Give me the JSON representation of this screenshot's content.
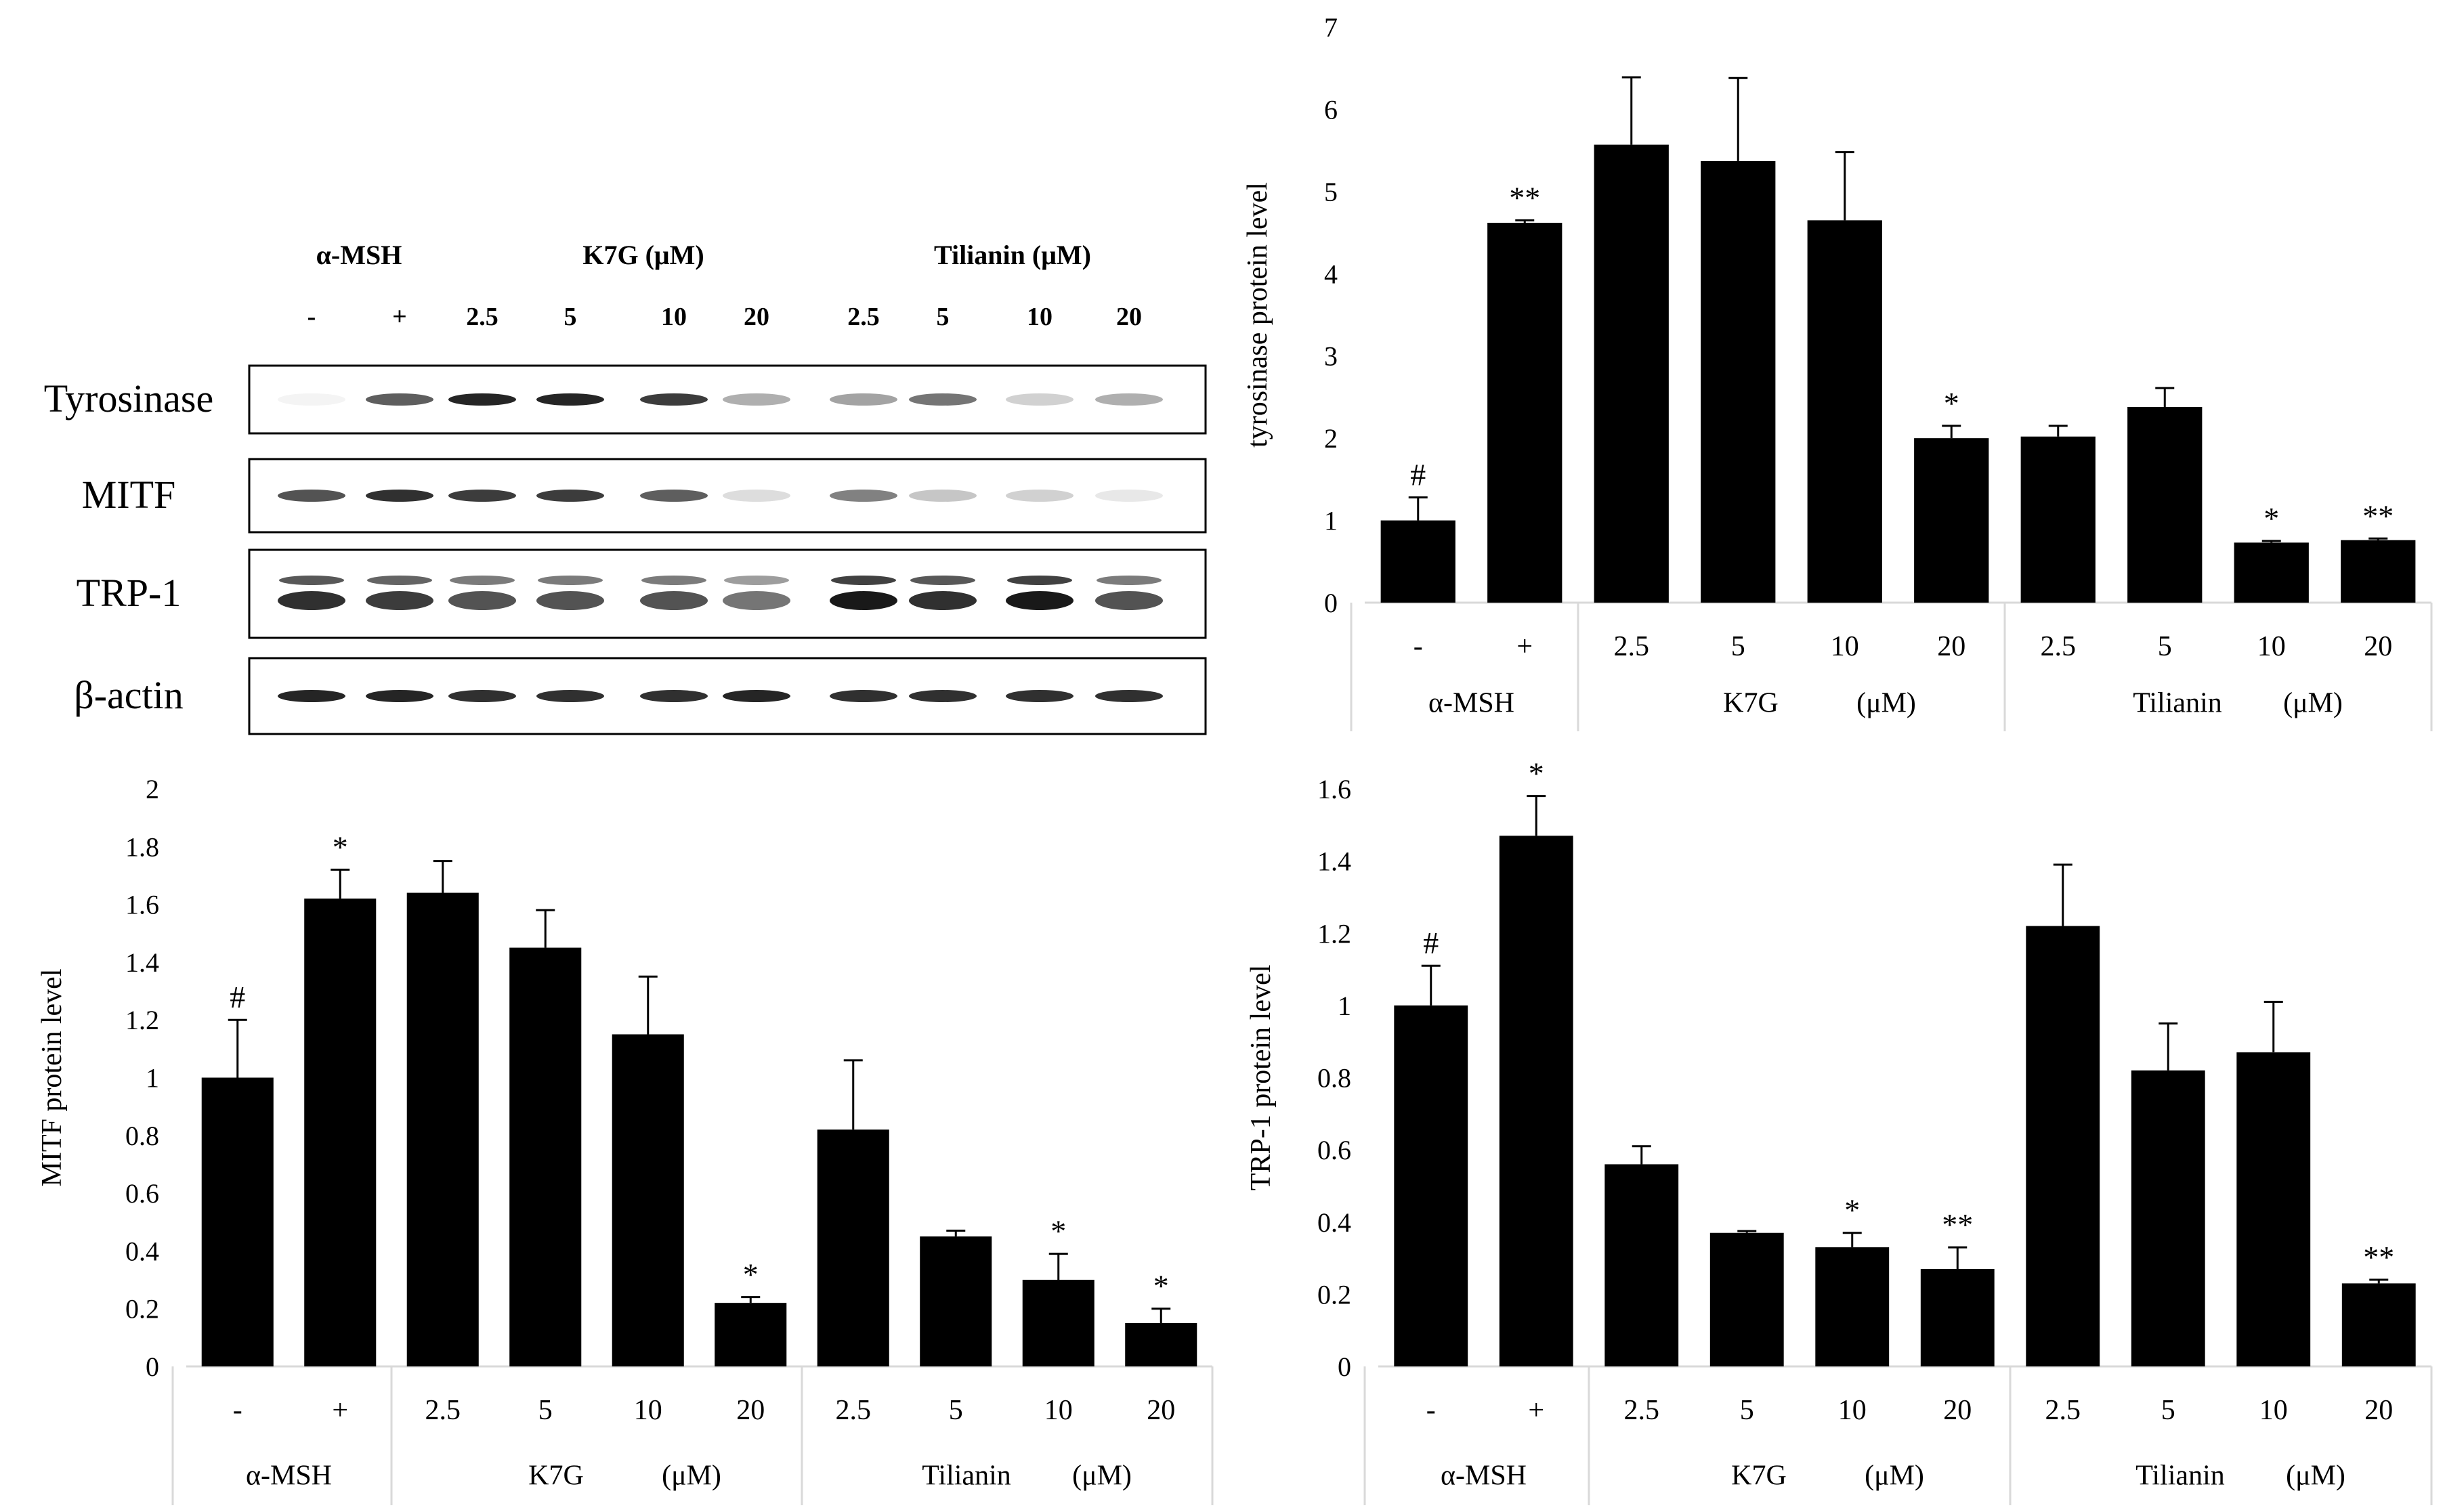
{
  "blot": {
    "headers": [
      "α-MSH",
      "K7G (μM)",
      "Tilianin (μM)"
    ],
    "lanes": [
      "-",
      "+",
      "2.5",
      "5",
      "10",
      "20",
      "2.5",
      "5",
      "10",
      "20"
    ],
    "rows": [
      "Tyrosinase",
      "MITF",
      "TRP-1",
      "β-actin"
    ]
  },
  "chart_data": [
    {
      "id": "tyrosinase",
      "type": "bar",
      "ylabel": "tyrosinase protein level",
      "ylim": [
        0,
        7
      ],
      "yticks": [
        0,
        1,
        2,
        3,
        4,
        5,
        6,
        7
      ],
      "categories": [
        "-",
        "+",
        "2.5",
        "5",
        "10",
        "20",
        "2.5",
        "5",
        "10",
        "20"
      ],
      "values": [
        1.0,
        4.62,
        5.57,
        5.37,
        4.65,
        2.0,
        2.02,
        2.38,
        0.73,
        0.76
      ],
      "errors": [
        0.28,
        0.03,
        0.82,
        1.01,
        0.83,
        0.15,
        0.13,
        0.23,
        0.02,
        0.02
      ],
      "annotations": [
        "#",
        "**",
        "",
        "",
        "",
        "*",
        "",
        "",
        "*",
        "**"
      ],
      "groups": [
        {
          "label": "α-MSH",
          "unit": "",
          "count": 2
        },
        {
          "label": "K7G",
          "unit": "(μM)",
          "count": 4
        },
        {
          "label": "Tilianin",
          "unit": "(μM)",
          "count": 4
        }
      ]
    },
    {
      "id": "mitf",
      "type": "bar",
      "ylabel": "MITF protein level",
      "ylim": [
        0,
        2
      ],
      "yticks": [
        0,
        0.2,
        0.4,
        0.6,
        0.8,
        1,
        1.2,
        1.4,
        1.6,
        1.8,
        2
      ],
      "categories": [
        "-",
        "+",
        "2.5",
        "5",
        "10",
        "20",
        "2.5",
        "5",
        "10",
        "20"
      ],
      "values": [
        1.0,
        1.62,
        1.64,
        1.45,
        1.15,
        0.22,
        0.82,
        0.45,
        0.3,
        0.15
      ],
      "errors": [
        0.2,
        0.1,
        0.11,
        0.13,
        0.2,
        0.02,
        0.24,
        0.02,
        0.09,
        0.05
      ],
      "annotations": [
        "#",
        "*",
        "",
        "",
        "",
        "*",
        "",
        "",
        "*",
        "*"
      ],
      "groups": [
        {
          "label": "α-MSH",
          "unit": "",
          "count": 2
        },
        {
          "label": "K7G",
          "unit": "(μM)",
          "count": 4
        },
        {
          "label": "Tilianin",
          "unit": "(μM)",
          "count": 4
        }
      ]
    },
    {
      "id": "trp1",
      "type": "bar",
      "ylabel": "TRP-1 protein level",
      "ylim": [
        0,
        1.6
      ],
      "yticks": [
        0,
        0.2,
        0.4,
        0.6,
        0.8,
        1,
        1.2,
        1.4,
        1.6
      ],
      "categories": [
        "-",
        "+",
        "2.5",
        "5",
        "10",
        "20",
        "2.5",
        "5",
        "10",
        "20"
      ],
      "values": [
        1.0,
        1.47,
        0.56,
        0.37,
        0.33,
        0.27,
        1.22,
        0.82,
        0.87,
        0.23
      ],
      "errors": [
        0.11,
        0.11,
        0.05,
        0.005,
        0.04,
        0.06,
        0.17,
        0.13,
        0.14,
        0.01
      ],
      "annotations": [
        "#",
        "*",
        "",
        "",
        "*",
        "**",
        "",
        "",
        "",
        "**"
      ],
      "groups": [
        {
          "label": "α-MSH",
          "unit": "",
          "count": 2
        },
        {
          "label": "K7G",
          "unit": "(μM)",
          "count": 4
        },
        {
          "label": "Tilianin",
          "unit": "(μM)",
          "count": 4
        }
      ]
    }
  ]
}
